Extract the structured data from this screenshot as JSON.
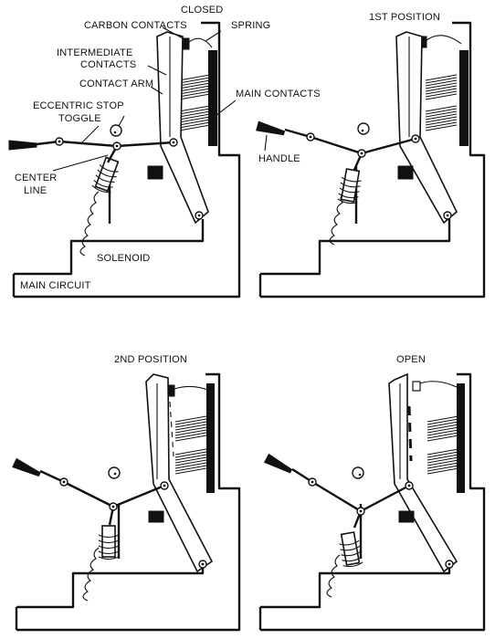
{
  "panels": [
    {
      "title": "CLOSED",
      "labels": {
        "carbon_contacts": "CARBON CONTACTS",
        "spring": "SPRING",
        "intermediate_contacts_1": "INTERMEDIATE",
        "intermediate_contacts_2": "CONTACTS",
        "contact_arm": "CONTACT ARM",
        "eccentric_stop": "ECCENTRIC STOP",
        "toggle": "TOGGLE",
        "main_contacts": "MAIN CONTACTS",
        "center_line_1": "CENTER",
        "center_line_2": "LINE",
        "solenoid": "SOLENOID",
        "main_circuit": "MAIN CIRCUIT"
      }
    },
    {
      "title": "1ST POSITION",
      "labels": {
        "handle": "HANDLE"
      }
    },
    {
      "title": "2ND POSITION"
    },
    {
      "title": "OPEN"
    }
  ]
}
